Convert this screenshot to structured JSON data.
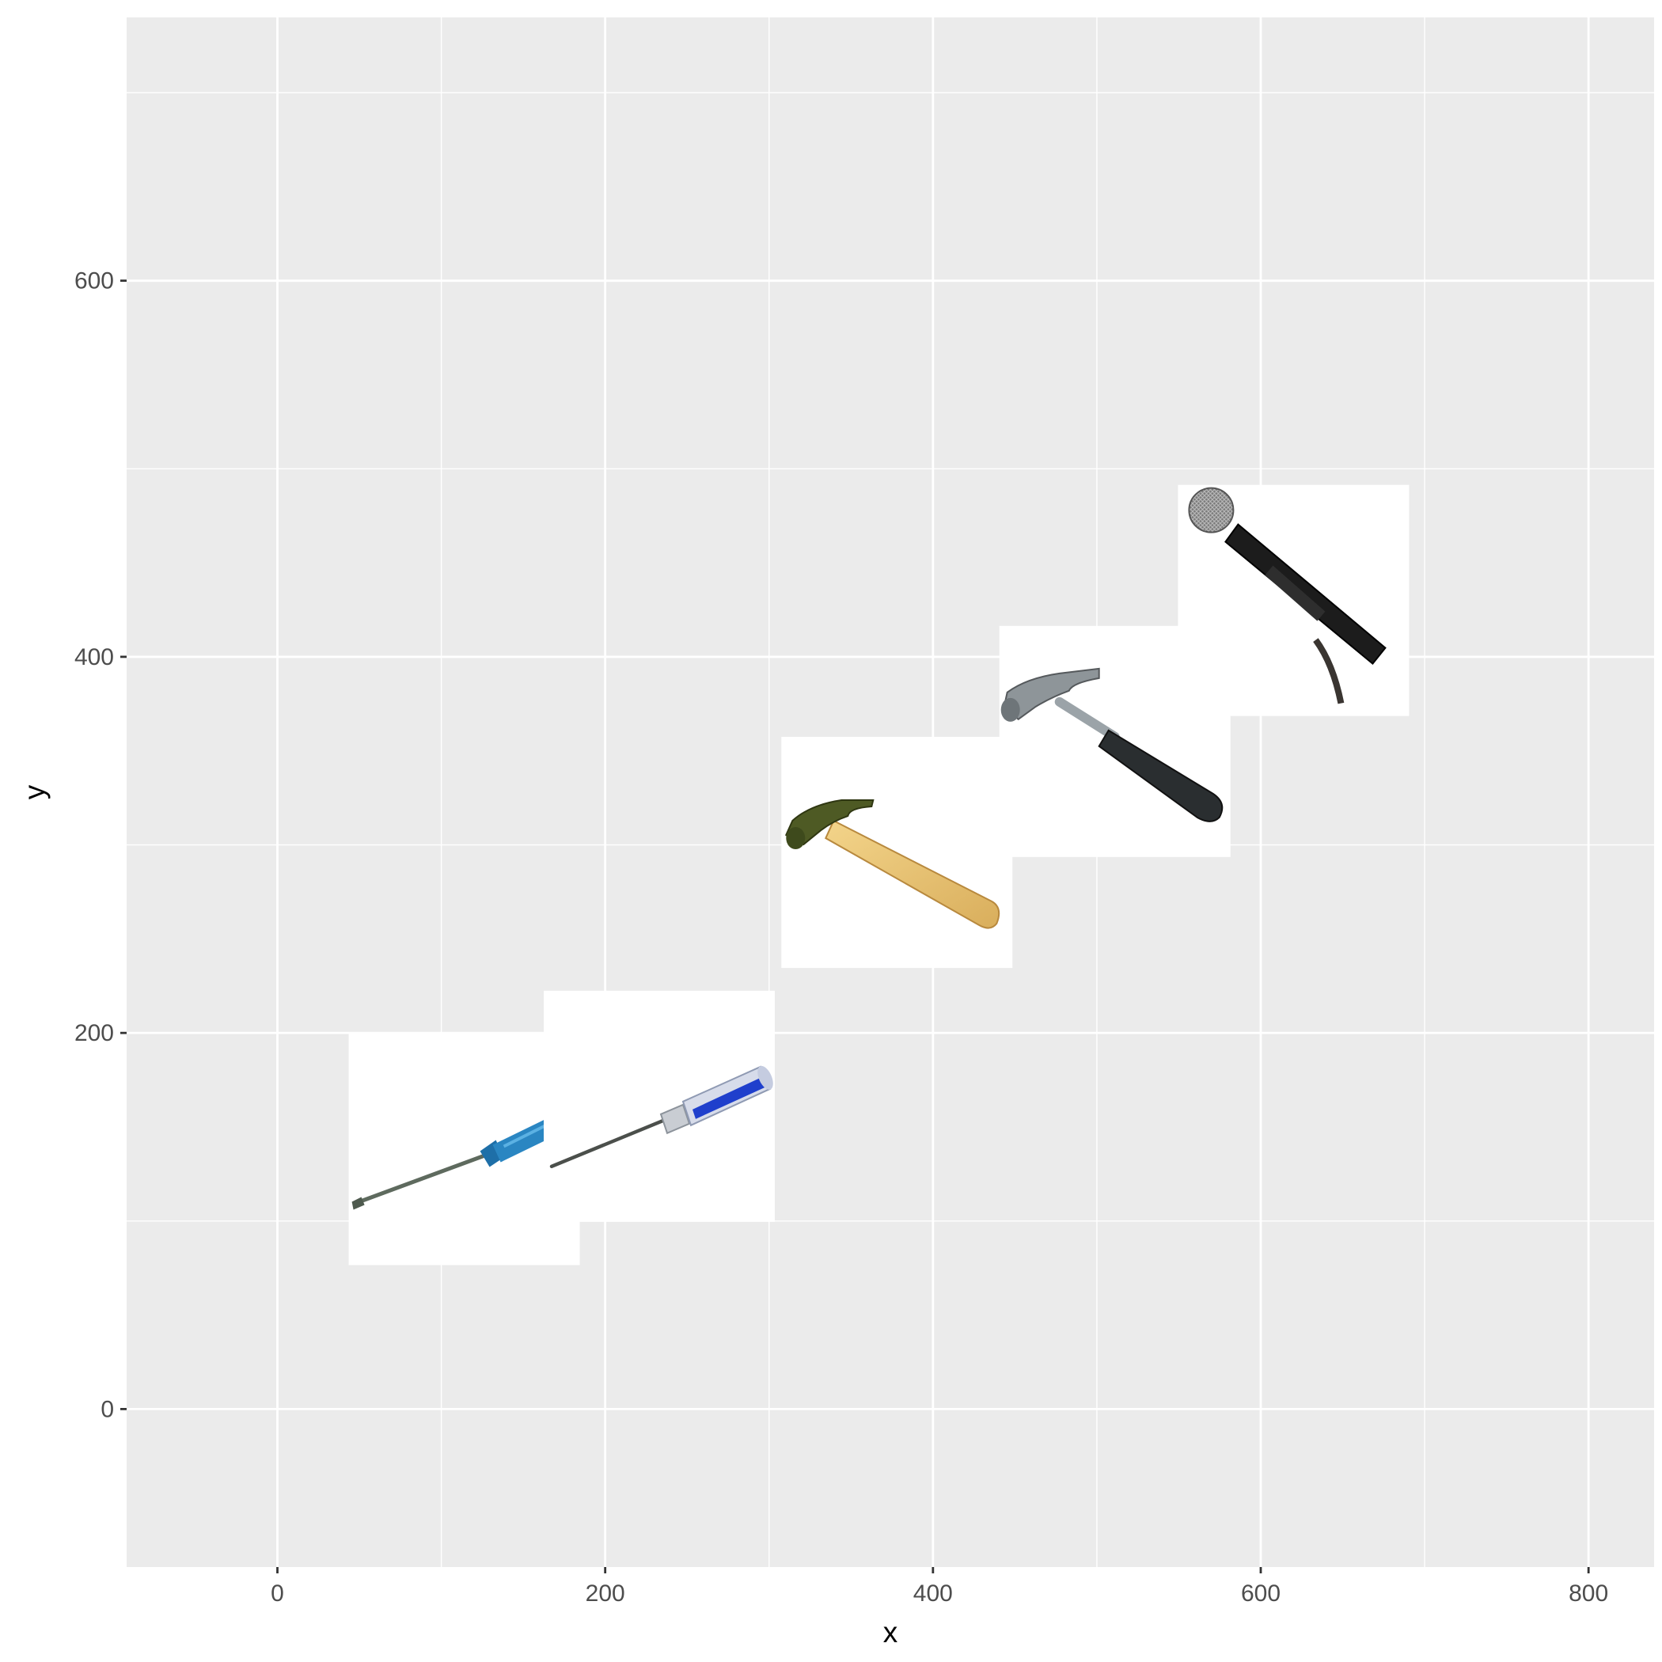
{
  "chart_data": {
    "type": "scatter",
    "title": "",
    "xlabel": "x",
    "ylabel": "y",
    "xlim": [
      -92,
      840
    ],
    "ylim": [
      -84,
      740
    ],
    "x_ticks": [
      0,
      200,
      400,
      600,
      800
    ],
    "y_ticks": [
      0,
      200,
      400,
      600
    ],
    "x_tick_labels": [
      "0",
      "200",
      "400",
      "600",
      "800"
    ],
    "y_tick_labels": [
      "0",
      "200",
      "400",
      "600"
    ],
    "grid": true,
    "legend": "none",
    "marker": "image",
    "points": [
      {
        "x": 114,
        "y": 138,
        "icon": "flat-screwdriver-icon"
      },
      {
        "x": 233,
        "y": 161,
        "icon": "phillips-screwdriver-icon"
      },
      {
        "x": 378,
        "y": 296,
        "icon": "wood-hammer-icon"
      },
      {
        "x": 511,
        "y": 355,
        "icon": "steel-hammer-icon"
      },
      {
        "x": 620,
        "y": 430,
        "icon": "microphone-icon"
      }
    ]
  },
  "colors": {
    "panel_bg": "#EBEBEB",
    "grid_major": "#FFFFFF",
    "tick_text": "#4D4D4D",
    "tick_mark": "#333333",
    "title_text": "#000000",
    "image_bg": "#FFFFFF"
  }
}
